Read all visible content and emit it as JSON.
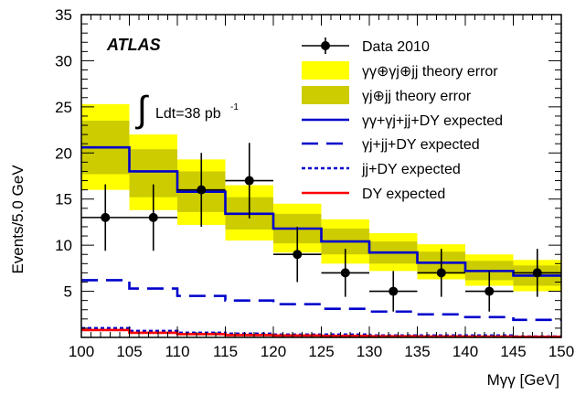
{
  "chart_data": {
    "type": "step-histogram",
    "xlabel": "Mγγ [GeV]",
    "ylabel": "Events/5.0 GeV",
    "xlim": [
      100,
      150
    ],
    "ylim": [
      0,
      35
    ],
    "xticks": [
      100,
      105,
      110,
      115,
      120,
      125,
      130,
      135,
      140,
      145,
      150
    ],
    "yticks": [
      5,
      10,
      15,
      20,
      25,
      30,
      35
    ],
    "bin_edges": [
      100,
      105,
      110,
      115,
      120,
      125,
      130,
      135,
      140,
      145,
      150
    ],
    "experiment": "ATLAS",
    "luminosity": {
      "integral": "∫",
      "text": "Ldt=38 pb",
      "sup": "-1"
    },
    "legend": {
      "placement": "top-right",
      "entries": [
        {
          "key": "data",
          "label": "Data 2010"
        },
        {
          "key": "band_outer",
          "label": "γγ⊕γj⊕jj theory error"
        },
        {
          "key": "band_inner",
          "label": "γj⊕jj theory error"
        },
        {
          "key": "total",
          "label": "γγ+γj+jj+DY expected"
        },
        {
          "key": "gj",
          "label": "γj+jj+DY expected"
        },
        {
          "key": "jj",
          "label": "jj+DY expected"
        },
        {
          "key": "dy",
          "label": "DY expected"
        }
      ]
    },
    "colors": {
      "band_outer": "#ffff00",
      "band_inner": "#cccc00",
      "total": "#0000cc",
      "gj": "#0000cc",
      "jj": "#0000cc",
      "dy": "#ff0000",
      "data": "#000000"
    },
    "series": [
      {
        "key": "total",
        "values": [
          20.6,
          18.0,
          15.8,
          13.4,
          11.8,
          10.4,
          9.2,
          8.1,
          7.2,
          6.7
        ]
      },
      {
        "key": "gj",
        "values": [
          6.2,
          5.3,
          4.5,
          4.0,
          3.6,
          3.1,
          2.8,
          2.5,
          2.2,
          1.9
        ]
      },
      {
        "key": "jj",
        "values": [
          1.0,
          0.7,
          0.5,
          0.4,
          0.3,
          0.3,
          0.2,
          0.2,
          0.2,
          0.1
        ]
      },
      {
        "key": "dy",
        "values": [
          0.8,
          0.5,
          0.35,
          0.25,
          0.2,
          0.15,
          0.12,
          0.1,
          0.08,
          0.06
        ]
      }
    ],
    "band_outer": {
      "low": [
        16.0,
        13.8,
        12.2,
        10.5,
        9.2,
        8.0,
        7.2,
        6.3,
        5.6,
        5.0
      ],
      "high": [
        25.3,
        22.0,
        19.3,
        16.5,
        14.5,
        12.8,
        11.3,
        10.1,
        9.0,
        8.4
      ]
    },
    "band_inner": {
      "low": [
        17.7,
        15.2,
        13.6,
        11.7,
        10.2,
        9.0,
        8.0,
        7.0,
        6.2,
        5.6
      ],
      "high": [
        23.5,
        20.4,
        18.0,
        15.2,
        13.4,
        11.8,
        10.4,
        9.3,
        8.3,
        7.8
      ]
    },
    "data": {
      "x": [
        102.5,
        107.5,
        112.5,
        117.5,
        122.5,
        127.5,
        132.5,
        137.5,
        142.5,
        147.5
      ],
      "y": [
        13,
        13,
        16,
        17,
        9,
        7,
        5,
        7,
        5,
        7
      ],
      "err_low": [
        3.6,
        3.6,
        4.0,
        4.1,
        3.0,
        2.6,
        2.2,
        2.6,
        2.2,
        2.6
      ],
      "err_high": [
        3.6,
        3.6,
        4.0,
        4.1,
        3.0,
        2.6,
        2.2,
        2.6,
        2.2,
        2.6
      ]
    }
  }
}
